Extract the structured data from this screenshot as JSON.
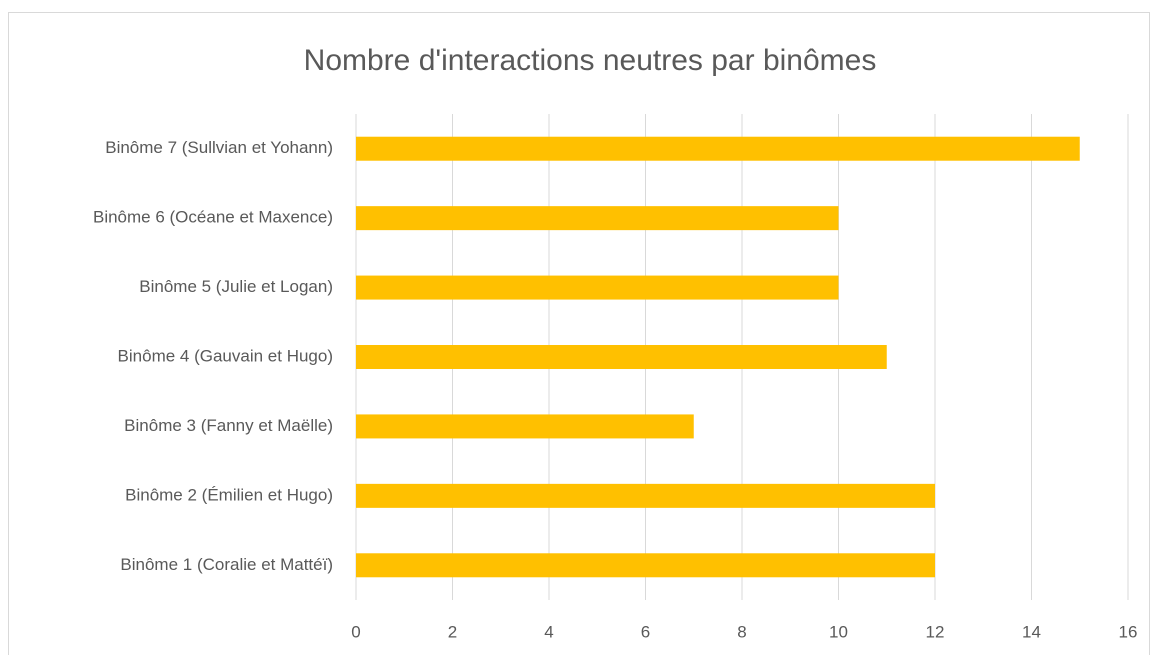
{
  "chart_data": {
    "type": "bar",
    "orientation": "horizontal",
    "title": "Nombre d'interactions neutres par binômes",
    "categories": [
      "Binôme 1 (Coralie et Mattéï)",
      "Binôme 2 (Émilien et Hugo)",
      "Binôme 3 (Fanny et Maëlle)",
      "Binôme 4 (Gauvain et Hugo)",
      "Binôme 5 (Julie et Logan)",
      "Binôme 6 (Océane et Maxence)",
      "Binôme 7 (Sullvian et Yohann)"
    ],
    "values": [
      12,
      12,
      7,
      11,
      10,
      10,
      15
    ],
    "color": "#ffc000",
    "xlim": [
      0,
      16
    ],
    "xticks": [
      0,
      2,
      4,
      6,
      8,
      10,
      12,
      14,
      16
    ],
    "grid": true
  }
}
